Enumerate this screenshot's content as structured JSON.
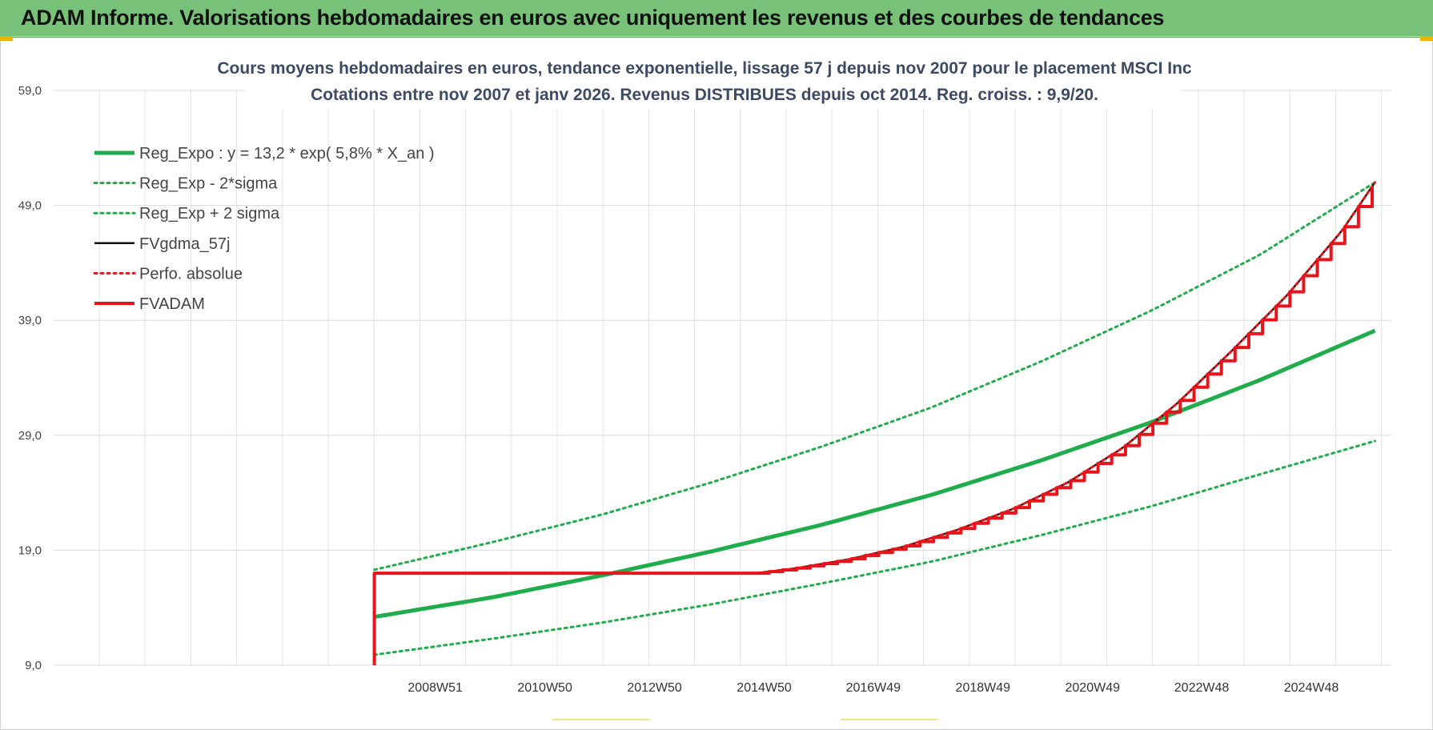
{
  "banner": {
    "title": "ADAM Informe. Valorisations hebdomadaires en euros avec uniquement les revenus et des courbes de tendances"
  },
  "chart_data": {
    "type": "line",
    "title_line1": "Cours moyens hebdomadaires en euros, tendance exponentielle, lissage 57 j depuis nov 2007  pour le placement MSCI Inc",
    "title_line2": "Cotations entre nov 2007 et janv 2026. Revenus DISTRIBUES depuis oct 2014.  Reg. croiss. : 9,9/20.",
    "xlabel": "",
    "ylabel": "",
    "ylim": [
      9,
      59
    ],
    "yticks": [
      "59,0",
      "49,0",
      "39,0",
      "29,0",
      "19,0",
      "9,0"
    ],
    "xtick_labels": [
      "2008W51",
      "2010W50",
      "2012W50",
      "2014W50",
      "2016W49",
      "2018W49",
      "2020W49",
      "2022W48",
      "2024W48"
    ],
    "xtick_years": [
      2008.96,
      2010.96,
      2012.96,
      2014.96,
      2016.95,
      2018.95,
      2020.95,
      2022.94,
      2024.94
    ],
    "xlim": [
      2002.0,
      2026.4
    ],
    "grid": true,
    "legend_position": "top-left",
    "colors": {
      "green": "#1fad4b",
      "red": "#e8141b",
      "black": "#111111"
    },
    "series": [
      {
        "name": "Reg_Expo : y = 13,2 * exp( 5,8% *  X_an )",
        "style": "solid-thick",
        "color": "#1fad4b",
        "x": [
          2007.85,
          2010,
          2012,
          2014,
          2016,
          2018,
          2020,
          2022,
          2024,
          2026.1
        ],
        "y": [
          13.2,
          14.9,
          16.8,
          18.9,
          21.2,
          23.8,
          26.8,
          30.1,
          33.8,
          38.1
        ]
      },
      {
        "name": "Reg_Exp - 2*sigma",
        "style": "dotted",
        "color": "#1fad4b",
        "x": [
          2007.85,
          2010,
          2012,
          2014,
          2016,
          2018,
          2020,
          2022,
          2024,
          2026.1
        ],
        "y": [
          9.9,
          11.3,
          12.7,
          14.3,
          16.1,
          18.0,
          20.3,
          22.8,
          25.6,
          28.5
        ]
      },
      {
        "name": "Reg_Exp + 2 sigma",
        "style": "dotted",
        "color": "#1fad4b",
        "x": [
          2007.85,
          2010,
          2012,
          2014,
          2016,
          2018,
          2020,
          2022,
          2024,
          2026.1
        ],
        "y": [
          17.3,
          19.7,
          22.1,
          24.9,
          28.0,
          31.4,
          35.4,
          39.8,
          44.7,
          51.0
        ]
      },
      {
        "name": "FVgdma_57j",
        "style": "solid",
        "color": "#111111",
        "x": [
          2007.85,
          2014.8,
          2015.5,
          2016.5,
          2017.5,
          2018.5,
          2019.5,
          2020.5,
          2021.5,
          2022.5,
          2023.5,
          2024.5,
          2025.5,
          2026.1
        ],
        "y": [
          17.0,
          17.0,
          17.4,
          18.2,
          19.3,
          20.8,
          22.6,
          24.9,
          27.9,
          31.8,
          36.4,
          41.2,
          46.8,
          51.0
        ]
      },
      {
        "name": "Perfo. absolue",
        "style": "dotted",
        "color": "#e8141b",
        "x": [
          2007.85,
          2014.8,
          2015.5,
          2016.5,
          2017.5,
          2018.5,
          2019.5,
          2020.5,
          2021.5,
          2022.5,
          2023.5,
          2024.5,
          2025.5,
          2026.1
        ],
        "y": [
          17.0,
          17.0,
          17.4,
          18.2,
          19.3,
          20.8,
          22.6,
          24.9,
          27.9,
          31.8,
          36.4,
          41.2,
          46.8,
          51.0
        ]
      },
      {
        "name": "FVADAM",
        "style": "step-thick",
        "color": "#e8141b",
        "x": [
          2007.85,
          2007.85,
          2014.8,
          2015.5,
          2016.5,
          2017.5,
          2018.5,
          2019.5,
          2020.5,
          2021.5,
          2022.5,
          2023.5,
          2024.5,
          2025.5,
          2026.1
        ],
        "y": [
          9.0,
          17.0,
          17.0,
          17.4,
          18.2,
          19.3,
          20.8,
          22.6,
          24.9,
          27.9,
          31.8,
          36.4,
          41.2,
          46.8,
          51.0
        ]
      }
    ]
  }
}
